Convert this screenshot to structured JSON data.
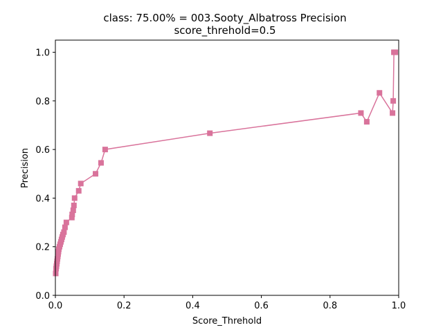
{
  "chart_data": {
    "type": "line",
    "title": "class: 75.00% = 003.Sooty_Albatross Precision",
    "subtitle": "score_threhold=0.5",
    "xlabel": "Score_Threhold",
    "ylabel": "Precision",
    "xlim": [
      0.0,
      1.0
    ],
    "ylim": [
      0.0,
      1.05
    ],
    "xticks": [
      "0.0",
      "0.2",
      "0.4",
      "0.6",
      "0.8",
      "1.0"
    ],
    "yticks": [
      "0.0",
      "0.2",
      "0.4",
      "0.6",
      "0.8",
      "1.0"
    ],
    "grid": false,
    "legend": "none",
    "series": [
      {
        "color": "#d9739b",
        "marker": "square",
        "x": [
          0.001,
          0.002,
          0.003,
          0.004,
          0.005,
          0.006,
          0.007,
          0.008,
          0.009,
          0.01,
          0.012,
          0.014,
          0.016,
          0.018,
          0.02,
          0.022,
          0.025,
          0.028,
          0.032,
          0.048,
          0.049,
          0.052,
          0.054,
          0.056,
          0.068,
          0.074,
          0.117,
          0.133,
          0.145,
          0.45,
          0.89,
          0.907,
          0.944,
          0.982,
          0.984,
          0.986,
          0.99
        ],
        "y": [
          0.09,
          0.11,
          0.12,
          0.13,
          0.14,
          0.15,
          0.16,
          0.17,
          0.18,
          0.19,
          0.2,
          0.21,
          0.22,
          0.23,
          0.24,
          0.25,
          0.26,
          0.28,
          0.3,
          0.32,
          0.333,
          0.35,
          0.37,
          0.4,
          0.43,
          0.46,
          0.5,
          0.545,
          0.6,
          0.667,
          0.75,
          0.714,
          0.833,
          0.75,
          0.8,
          1.0,
          1.0
        ]
      }
    ]
  }
}
